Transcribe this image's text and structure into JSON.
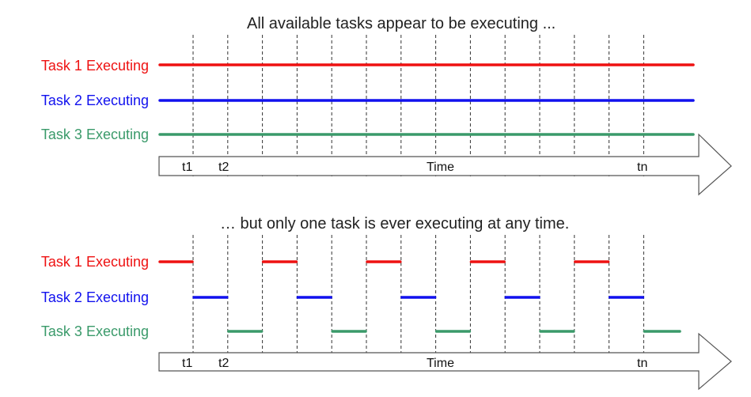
{
  "top": {
    "title": "All available tasks appear to be executing ...",
    "labels": [
      "Task 1 Executing",
      "Task 2 Executing",
      "Task 3 Executing"
    ],
    "axis": {
      "start": "t1",
      "second": "t2",
      "middle": "Time",
      "end": "tn"
    }
  },
  "bottom": {
    "title": "… but only one task is ever executing at any time.",
    "labels": [
      "Task 1 Executing",
      "Task 2 Executing",
      "Task 3 Executing"
    ],
    "axis": {
      "start": "t1",
      "second": "t2",
      "middle": "Time",
      "end": "tn"
    }
  },
  "colors": {
    "task1": "#ee1111",
    "task2": "#1111ee",
    "task3": "#3a9a6a"
  }
}
